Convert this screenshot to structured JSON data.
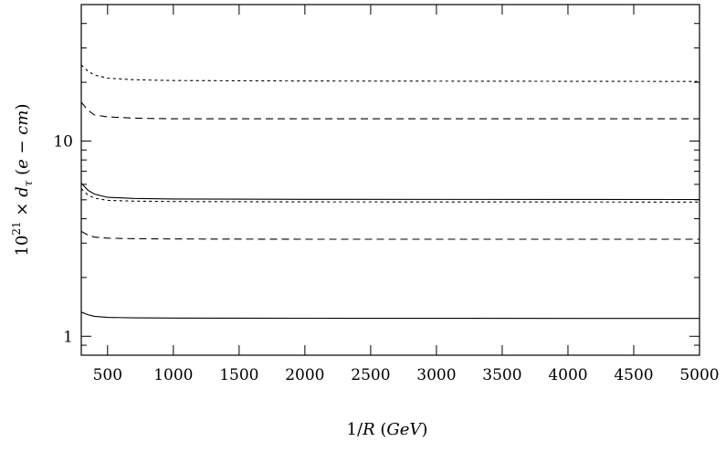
{
  "chart_data": {
    "type": "line",
    "title": "",
    "xlabel": "1/R (GeV)",
    "ylabel": "10^21 × d_τ (e − cm)",
    "xlim": [
      300,
      5000
    ],
    "ylim": [
      0.8,
      50
    ],
    "yscale": "log",
    "grid": false,
    "legend": "none",
    "x_ticks": [
      500,
      1000,
      1500,
      2000,
      2500,
      3000,
      3500,
      4000,
      4500,
      5000
    ],
    "x_tick_labels": [
      "500",
      "1000",
      "1500",
      "2000",
      "2500",
      "3000",
      "3500",
      "4000",
      "4500",
      "5000"
    ],
    "y_ticks": [
      1,
      10
    ],
    "y_tick_labels": [
      "1",
      "10"
    ],
    "series": [
      {
        "style": "dotted",
        "color": "#000000",
        "x": [
          300,
          350,
          400,
          500,
          700,
          1000,
          2000,
          5000
        ],
        "values": [
          24.5,
          22.8,
          21.8,
          21.0,
          20.6,
          20.4,
          20.3,
          20.2
        ]
      },
      {
        "style": "dashed",
        "color": "#000000",
        "x": [
          300,
          350,
          400,
          500,
          700,
          1000,
          2000,
          5000
        ],
        "values": [
          15.8,
          14.4,
          13.6,
          13.3,
          13.1,
          13.0,
          13.0,
          13.0
        ]
      },
      {
        "style": "solid",
        "color": "#000000",
        "x": [
          300,
          350,
          400,
          500,
          700,
          1000,
          2000,
          5000
        ],
        "values": [
          6.1,
          5.6,
          5.35,
          5.15,
          5.08,
          5.05,
          5.03,
          5.02
        ]
      },
      {
        "style": "dotted",
        "color": "#000000",
        "x": [
          300,
          350,
          400,
          500,
          700,
          1000,
          2000,
          5000
        ],
        "values": [
          5.7,
          5.3,
          5.1,
          4.97,
          4.92,
          4.9,
          4.88,
          4.87
        ]
      },
      {
        "style": "dashed",
        "color": "#000000",
        "x": [
          300,
          350,
          400,
          500,
          700,
          1000,
          2000,
          5000
        ],
        "values": [
          3.45,
          3.3,
          3.22,
          3.18,
          3.16,
          3.15,
          3.14,
          3.14
        ]
      },
      {
        "style": "solid",
        "color": "#000000",
        "x": [
          300,
          350,
          400,
          500,
          700,
          1000,
          2000,
          5000
        ],
        "values": [
          1.33,
          1.29,
          1.265,
          1.25,
          1.243,
          1.24,
          1.238,
          1.235
        ]
      }
    ]
  }
}
